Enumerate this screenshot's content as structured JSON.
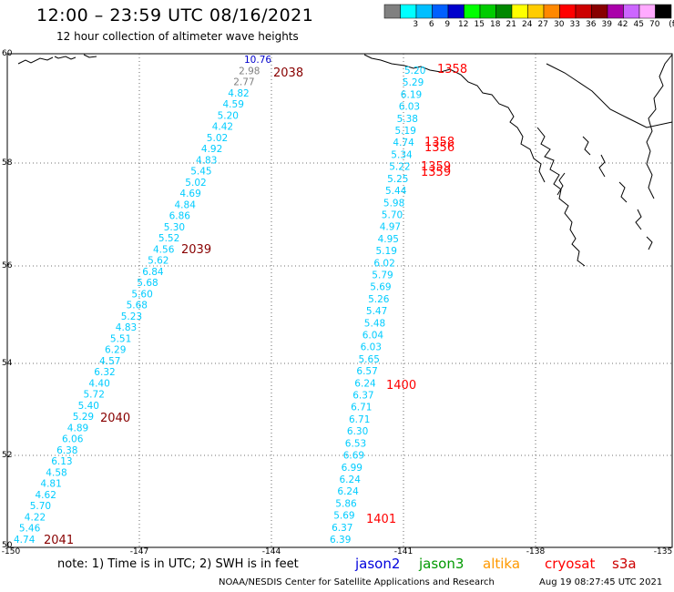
{
  "header": {
    "title": "12:00 – 23:59 UTC 08/16/2021",
    "subtitle": "12 hour collection of altimeter wave heights"
  },
  "legend": {
    "unit": "(ft)",
    "swatches": [
      {
        "color": "#808080",
        "label": ""
      },
      {
        "color": "#00ffff",
        "label": "3"
      },
      {
        "color": "#00bfff",
        "label": "6"
      },
      {
        "color": "#0060ff",
        "label": "9"
      },
      {
        "color": "#0000cc",
        "label": "12"
      },
      {
        "color": "#00ff00",
        "label": "15"
      },
      {
        "color": "#00cc00",
        "label": "18"
      },
      {
        "color": "#008800",
        "label": "21"
      },
      {
        "color": "#ffff00",
        "label": "24"
      },
      {
        "color": "#ffcc00",
        "label": "27"
      },
      {
        "color": "#ff8800",
        "label": "30"
      },
      {
        "color": "#ff0000",
        "label": "33"
      },
      {
        "color": "#cc0000",
        "label": "36"
      },
      {
        "color": "#880000",
        "label": "39"
      },
      {
        "color": "#aa00aa",
        "label": "42"
      },
      {
        "color": "#cc66ff",
        "label": "45"
      },
      {
        "color": "#ffaaff",
        "label": "70"
      },
      {
        "color": "#000000",
        "label": ""
      }
    ]
  },
  "axes": {
    "lon_labels": [
      "-150",
      "-147",
      "-144",
      "-141",
      "-138",
      "-135"
    ],
    "lat_labels": [
      "50",
      "52",
      "54",
      "56",
      "58",
      "60"
    ]
  },
  "tracks": {
    "west": [
      {
        "v": "10.76",
        "c": "#0000cc"
      },
      {
        "v": "2.98",
        "c": "#808080"
      },
      {
        "v": "2.77",
        "c": "#808080"
      },
      {
        "v": "4.82",
        "c": "#00ccff"
      },
      {
        "v": "4.59",
        "c": "#00ccff"
      },
      {
        "v": "5.20",
        "c": "#00ccff"
      },
      {
        "v": "4.42",
        "c": "#00ccff"
      },
      {
        "v": "5.02",
        "c": "#00ccff"
      },
      {
        "v": "4.92",
        "c": "#00ccff"
      },
      {
        "v": "4.83",
        "c": "#00ccff"
      },
      {
        "v": "5.45",
        "c": "#00ccff"
      },
      {
        "v": "5.02",
        "c": "#00ccff"
      },
      {
        "v": "4.69",
        "c": "#00ccff"
      },
      {
        "v": "4.84",
        "c": "#00ccff"
      },
      {
        "v": "6.86",
        "c": "#00ccff"
      },
      {
        "v": "5.30",
        "c": "#00ccff"
      },
      {
        "v": "5.52",
        "c": "#00ccff"
      },
      {
        "v": "4.56",
        "c": "#00ccff"
      },
      {
        "v": "5.62",
        "c": "#00ccff"
      },
      {
        "v": "6.84",
        "c": "#00ccff"
      },
      {
        "v": "5.68",
        "c": "#00ccff"
      },
      {
        "v": "5.60",
        "c": "#00ccff"
      },
      {
        "v": "5.68",
        "c": "#00ccff"
      },
      {
        "v": "5.23",
        "c": "#00ccff"
      },
      {
        "v": "4.83",
        "c": "#00ccff"
      },
      {
        "v": "5.51",
        "c": "#00ccff"
      },
      {
        "v": "6.29",
        "c": "#00ccff"
      },
      {
        "v": "4.57",
        "c": "#00ccff"
      },
      {
        "v": "6.32",
        "c": "#00ccff"
      },
      {
        "v": "4.40",
        "c": "#00ccff"
      },
      {
        "v": "5.72",
        "c": "#00ccff"
      },
      {
        "v": "5.40",
        "c": "#00ccff"
      },
      {
        "v": "5.29",
        "c": "#00ccff"
      },
      {
        "v": "4.89",
        "c": "#00ccff"
      },
      {
        "v": "6.06",
        "c": "#00ccff"
      },
      {
        "v": "6.38",
        "c": "#00ccff"
      },
      {
        "v": "6.13",
        "c": "#00ccff"
      },
      {
        "v": "4.58",
        "c": "#00ccff"
      },
      {
        "v": "4.81",
        "c": "#00ccff"
      },
      {
        "v": "4.62",
        "c": "#00ccff"
      },
      {
        "v": "5.70",
        "c": "#00ccff"
      },
      {
        "v": "4.22",
        "c": "#00ccff"
      },
      {
        "v": "5.46",
        "c": "#00ccff"
      },
      {
        "v": "4.74",
        "c": "#00ccff"
      }
    ],
    "east": [
      {
        "v": "5.20",
        "c": "#00ccff"
      },
      {
        "v": "5.29",
        "c": "#00ccff"
      },
      {
        "v": "6.19",
        "c": "#00ccff"
      },
      {
        "v": "6.03",
        "c": "#00ccff"
      },
      {
        "v": "5.38",
        "c": "#00ccff"
      },
      {
        "v": "5.19",
        "c": "#00ccff"
      },
      {
        "v": "4.74",
        "c": "#00ccff"
      },
      {
        "v": "5.34",
        "c": "#00ccff"
      },
      {
        "v": "5.22",
        "c": "#00ccff"
      },
      {
        "v": "5.25",
        "c": "#00ccff"
      },
      {
        "v": "5.44",
        "c": "#00ccff"
      },
      {
        "v": "5.98",
        "c": "#00ccff"
      },
      {
        "v": "5.70",
        "c": "#00ccff"
      },
      {
        "v": "4.97",
        "c": "#00ccff"
      },
      {
        "v": "4.95",
        "c": "#00ccff"
      },
      {
        "v": "5.19",
        "c": "#00ccff"
      },
      {
        "v": "6.02",
        "c": "#00ccff"
      },
      {
        "v": "5.79",
        "c": "#00ccff"
      },
      {
        "v": "5.69",
        "c": "#00ccff"
      },
      {
        "v": "5.26",
        "c": "#00ccff"
      },
      {
        "v": "5.47",
        "c": "#00ccff"
      },
      {
        "v": "5.48",
        "c": "#00ccff"
      },
      {
        "v": "6.04",
        "c": "#00ccff"
      },
      {
        "v": "6.03",
        "c": "#00ccff"
      },
      {
        "v": "5.65",
        "c": "#00ccff"
      },
      {
        "v": "6.57",
        "c": "#00ccff"
      },
      {
        "v": "6.24",
        "c": "#00ccff"
      },
      {
        "v": "6.37",
        "c": "#00ccff"
      },
      {
        "v": "6.71",
        "c": "#00ccff"
      },
      {
        "v": "6.71",
        "c": "#00ccff"
      },
      {
        "v": "6.30",
        "c": "#00ccff"
      },
      {
        "v": "6.53",
        "c": "#00ccff"
      },
      {
        "v": "6.69",
        "c": "#00ccff"
      },
      {
        "v": "6.99",
        "c": "#00ccff"
      },
      {
        "v": "6.24",
        "c": "#00ccff"
      },
      {
        "v": "6.24",
        "c": "#00ccff"
      },
      {
        "v": "5.86",
        "c": "#00ccff"
      },
      {
        "v": "5.69",
        "c": "#00ccff"
      },
      {
        "v": "6.37",
        "c": "#00ccff"
      },
      {
        "v": "6.39",
        "c": "#00ccff"
      }
    ]
  },
  "time_labels": [
    {
      "t": "2038",
      "c": "#880000"
    },
    {
      "t": "2039",
      "c": "#880000"
    },
    {
      "t": "2040",
      "c": "#880000"
    },
    {
      "t": "2041",
      "c": "#880000"
    },
    {
      "t": "1358",
      "c": "#ff0000"
    },
    {
      "t": "1358",
      "c": "#ff0000"
    },
    {
      "t": "1356",
      "c": "#ff0000"
    },
    {
      "t": "1359",
      "c": "#ff0000"
    },
    {
      "t": "1359",
      "c": "#ff0000"
    },
    {
      "t": "1400",
      "c": "#ff0000"
    },
    {
      "t": "1401",
      "c": "#ff0000"
    }
  ],
  "note": "note: 1) Time is in UTC; 2) SWH is in feet",
  "satellites": [
    {
      "name": "jason2",
      "color": "#0000dd"
    },
    {
      "name": "jason3",
      "color": "#009900"
    },
    {
      "name": "altika",
      "color": "#ff9900"
    },
    {
      "name": "cryosat",
      "color": "#ff0000"
    },
    {
      "name": "s3a",
      "color": "#cc0000"
    }
  ],
  "footer": {
    "credit": "NOAA/NESDIS Center for Satellite Applications and Research",
    "timestamp": "Aug 19 08:27:45 UTC 2021"
  }
}
